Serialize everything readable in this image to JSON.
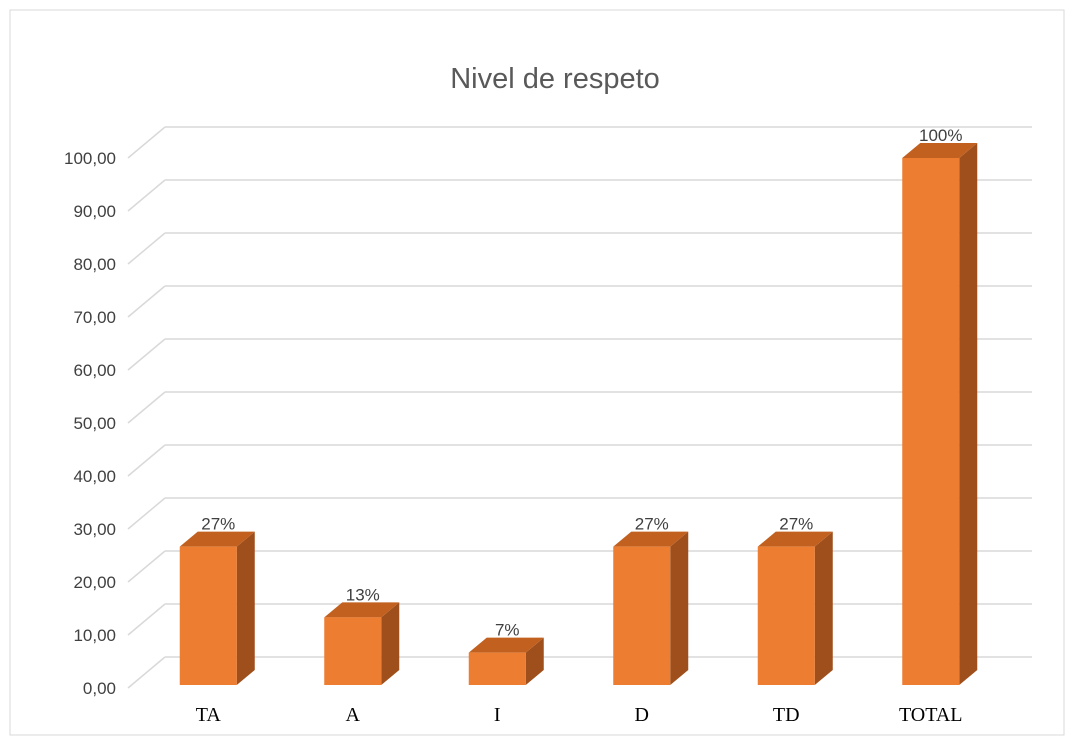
{
  "chart_data": {
    "type": "bar3d",
    "title": "Nivel de respeto",
    "categories": [
      "TA",
      "A",
      "I",
      "D",
      "TD",
      "TOTAL"
    ],
    "values": [
      26.67,
      13.33,
      6.67,
      26.67,
      26.67,
      100
    ],
    "value_labels": [
      "27%",
      "13%",
      "7%",
      "27%",
      "27%",
      "100%"
    ],
    "color": "#ed7d31",
    "ylim": [
      0,
      100
    ],
    "yticks": [
      {
        "value": 0,
        "label": "0,00"
      },
      {
        "value": 10,
        "label": "10,00"
      },
      {
        "value": 20,
        "label": "20,00"
      },
      {
        "value": 30,
        "label": "30,00"
      },
      {
        "value": 40,
        "label": "40,00"
      },
      {
        "value": 50,
        "label": "50,00"
      },
      {
        "value": 60,
        "label": "60,00"
      },
      {
        "value": 70,
        "label": "70,00"
      },
      {
        "value": 80,
        "label": "80,00"
      },
      {
        "value": 90,
        "label": "90,00"
      },
      {
        "value": 100,
        "label": "100,00"
      }
    ],
    "grid": true
  }
}
